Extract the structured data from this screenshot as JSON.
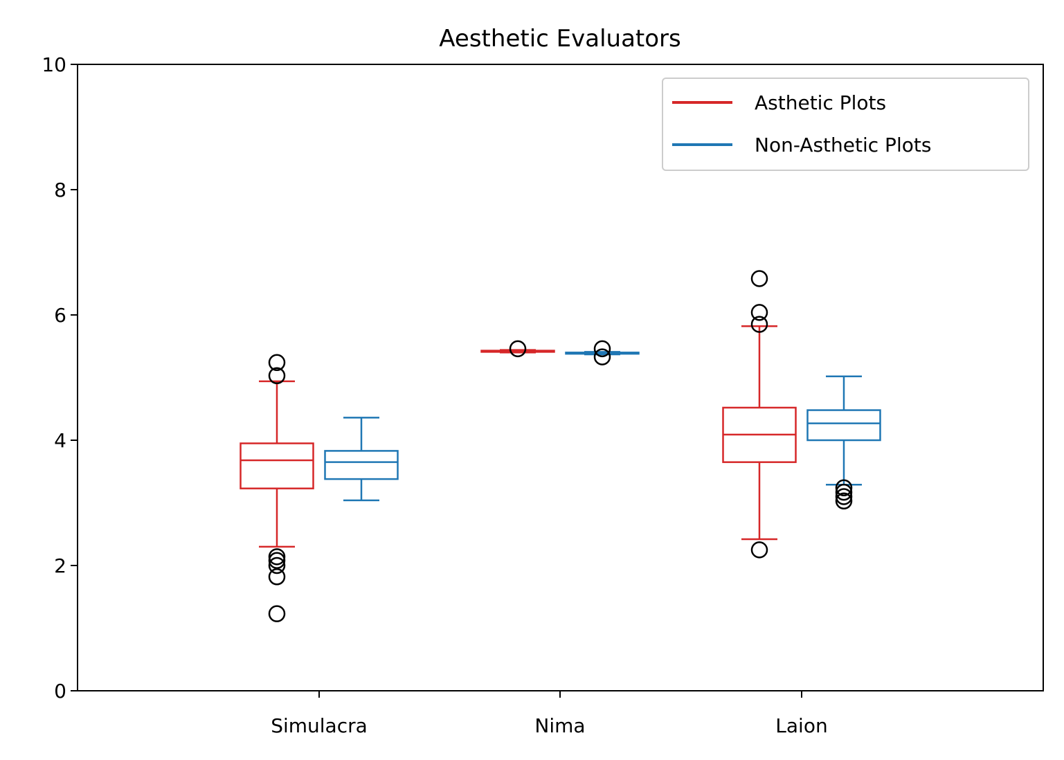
{
  "chart_data": {
    "type": "box",
    "title": "Aesthetic Evaluators",
    "xlabel": "",
    "ylabel": "",
    "ylim": [
      0,
      10
    ],
    "yticks": [
      0,
      2,
      4,
      6,
      8,
      10
    ],
    "categories": [
      "Simulacra",
      "Nima",
      "Laion"
    ],
    "grid": false,
    "legend": {
      "placement": "top-right"
    },
    "series": [
      {
        "name": "Asthetic Plots",
        "color": "#d62728",
        "boxes": [
          {
            "category": "Simulacra",
            "whisker_low": 2.3,
            "q1": 3.23,
            "median": 3.68,
            "q3": 3.95,
            "whisker_high": 4.94,
            "outliers": [
              5.24,
              5.03,
              2.14,
              2.08,
              2.0,
              1.82,
              1.23
            ]
          },
          {
            "category": "Nima",
            "whisker_low": 5.4,
            "q1": 5.41,
            "median": 5.42,
            "q3": 5.43,
            "whisker_high": 5.44,
            "outliers": [
              5.46
            ]
          },
          {
            "category": "Laion",
            "whisker_low": 2.42,
            "q1": 3.65,
            "median": 4.09,
            "q3": 4.52,
            "whisker_high": 5.82,
            "outliers": [
              6.58,
              6.04,
              5.85,
              2.25
            ]
          }
        ]
      },
      {
        "name": "Non-Asthetic Plots",
        "color": "#1f77b4",
        "boxes": [
          {
            "category": "Simulacra",
            "whisker_low": 3.04,
            "q1": 3.38,
            "median": 3.65,
            "q3": 3.83,
            "whisker_high": 4.36,
            "outliers": []
          },
          {
            "category": "Nima",
            "whisker_low": 5.37,
            "q1": 5.38,
            "median": 5.39,
            "q3": 5.4,
            "whisker_high": 5.41,
            "outliers": [
              5.46,
              5.33
            ]
          },
          {
            "category": "Laion",
            "whisker_low": 3.29,
            "q1": 4.0,
            "median": 4.27,
            "q3": 4.48,
            "whisker_high": 5.02,
            "outliers": [
              3.24,
              3.17,
              3.1,
              3.03
            ]
          }
        ]
      }
    ]
  }
}
